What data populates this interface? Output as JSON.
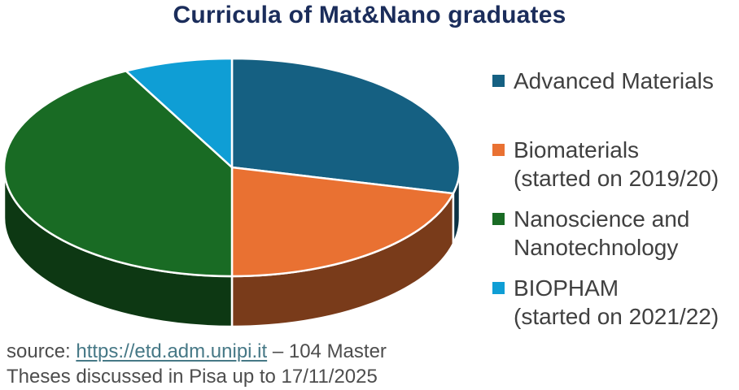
{
  "title": {
    "text": "Curricula of Mat&Nano graduates"
  },
  "colors": {
    "title_text": "#1B2D5B",
    "legend_text": "#404040",
    "source_text": "#4D4D4D",
    "link": "#467886",
    "background": "#FFFFFF",
    "slice_stroke": "#FFFFFF"
  },
  "chart_data": {
    "type": "pie",
    "style": "3d",
    "title": "Curricula of Mat&Nano graduates",
    "total_theses": 104,
    "start_angle_deg": -90,
    "direction": "clockwise",
    "legend_position": "right",
    "slices": [
      {
        "label": "Advanced Materials",
        "value": 30,
        "percent": 28.8,
        "color": "#156082"
      },
      {
        "label": "Biomaterials (started on 2019/20)",
        "value": 22,
        "percent": 21.2,
        "color": "#E97132"
      },
      {
        "label": "Nanoscience and Nanotechnology",
        "value": 44,
        "percent": 42.3,
        "color": "#196B24"
      },
      {
        "label": "BIOPHAM (started on 2021/22)",
        "value": 8,
        "percent": 7.7,
        "color": "#0F9ED5"
      }
    ]
  },
  "legend": {
    "items": [
      {
        "line1": "Advanced Materials",
        "line2": ""
      },
      {
        "line1": "Biomaterials",
        "line2": "(started on 2019/20)"
      },
      {
        "line1": "Nanoscience and",
        "line2": "Nanotechnology"
      },
      {
        "line1": "BIOPHAM",
        "line2": "(started on 2021/22)"
      }
    ]
  },
  "source": {
    "prefix": "source: ",
    "link_text": "https://etd.adm.unipi.it",
    "after_link": " – 104 Master",
    "line2": "Theses discussed in Pisa up to 17/11/2025"
  }
}
